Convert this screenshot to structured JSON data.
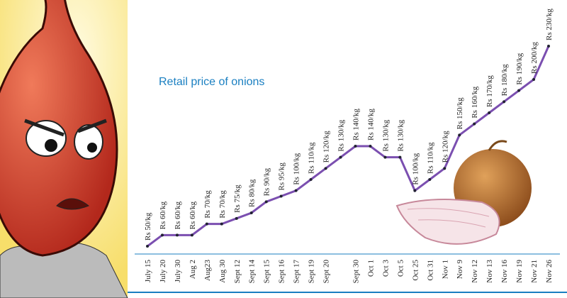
{
  "chart_data": {
    "type": "line",
    "title": "Retail price of onions",
    "categories": [
      "July 15",
      "July 20",
      "July 30",
      "Aug 2",
      "Aug23",
      "Aug 30",
      "Sept 12",
      "Sept 14",
      "Sept 15",
      "Sept 16",
      "Sept 17",
      "Sept 19",
      "Sept 20",
      null,
      "Sept 30",
      "Oct 1",
      "Oct 3",
      "Oct 5",
      "Oct 25",
      "Oct 31",
      "Nov 1",
      "Nov 9",
      "Nov 12",
      "Nov 13",
      "Nov 16",
      "Nov 19",
      "Nov 21",
      "Nov 26"
    ],
    "values": [
      50,
      60,
      60,
      60,
      70,
      70,
      75,
      80,
      90,
      95,
      100,
      110,
      120,
      130,
      140,
      140,
      130,
      130,
      100,
      110,
      120,
      150,
      160,
      170,
      180,
      190,
      200,
      230
    ],
    "value_labels": [
      "Rs 50/kg",
      "Rs 60/kg",
      "Rs 60/kg",
      "Rs 60/kg",
      "Rs 70/kg",
      "Rs 70/kg",
      "Rs 75/kg",
      "Rs 80/kg",
      "Rs 90/kg",
      "Rs 95/kg",
      "Rs 100/kg",
      "Rs 110/kg",
      "Rs 120/kg",
      "Rs 130/kg",
      "Rs 140/kg",
      "Rs 140/kg",
      "Rs 130/kg",
      "Rs 130/kg",
      "Rs 100/kg",
      "Rs 110/kg",
      "Rs 120/kg",
      "Rs 150/kg",
      "Rs 160/kg",
      "Rs 170/kg",
      "Rs 180/kg",
      "Rs 190/kg",
      "Rs 200/kg",
      "Rs 230/kg"
    ],
    "color": "#7b4fb0"
  }
}
